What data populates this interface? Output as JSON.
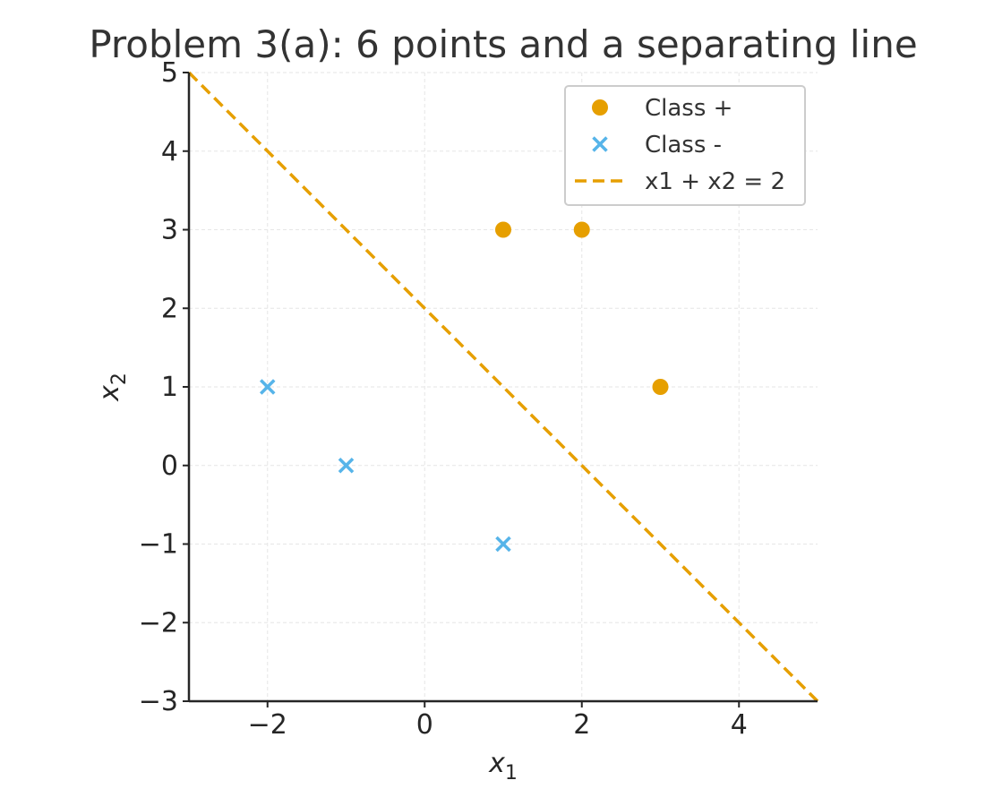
{
  "chart_data": {
    "type": "scatter",
    "title": "Problem 3(a): 6 points and a separating line",
    "xlabel": "x",
    "xlabel_sub": "1",
    "ylabel": "x",
    "ylabel_sub": "2",
    "xlim": [
      -3,
      5
    ],
    "ylim": [
      -3,
      5
    ],
    "xticks": [
      -2,
      0,
      2,
      4
    ],
    "yticks": [
      -3,
      -2,
      -1,
      0,
      1,
      2,
      3,
      4,
      5
    ],
    "xtick_labels": [
      "−2",
      "0",
      "2",
      "4"
    ],
    "ytick_labels": [
      "−3",
      "−2",
      "−1",
      "0",
      "1",
      "2",
      "3",
      "4",
      "5"
    ],
    "grid": true,
    "legend_position": "top-right",
    "series": [
      {
        "name": "Class +",
        "marker": "circle",
        "color": "#E69F00",
        "points": [
          [
            1,
            3
          ],
          [
            2,
            3
          ],
          [
            3,
            1
          ]
        ]
      },
      {
        "name": "Class -",
        "marker": "x",
        "color": "#56B4E9",
        "points": [
          [
            -2,
            1
          ],
          [
            -1,
            0
          ],
          [
            1,
            -1
          ]
        ]
      }
    ],
    "lines": [
      {
        "name": "x1 + x2 = 2",
        "style": "dashed",
        "color": "#E69F00",
        "points": [
          [
            -3,
            5
          ],
          [
            5,
            -3
          ]
        ]
      }
    ]
  }
}
